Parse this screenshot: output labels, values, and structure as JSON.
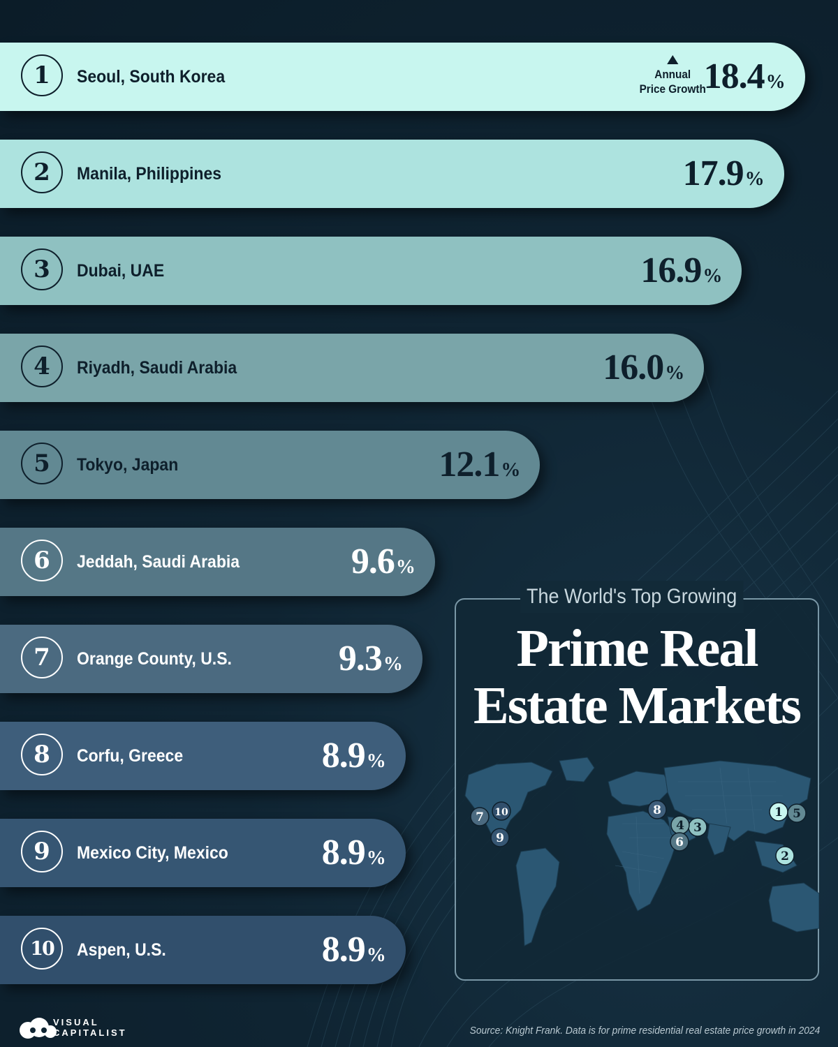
{
  "title": {
    "subtitle": "The World's Top Growing",
    "line1": "Prime Real",
    "line2": "Estate Markets"
  },
  "value_note": {
    "line1": "Annual",
    "line2": "Price Growth"
  },
  "chart_data": {
    "type": "bar",
    "orientation": "horizontal",
    "title": "The World's Top Growing Prime Real Estate Markets",
    "value_label": "Annual Price Growth",
    "unit": "%",
    "categories": [
      "Seoul, South Korea",
      "Manila, Philippines",
      "Dubai, UAE",
      "Riyadh, Saudi Arabia",
      "Tokyo, Japan",
      "Jeddah, Saudi Arabia",
      "Orange County, U.S.",
      "Corfu, Greece",
      "Mexico City, Mexico",
      "Aspen, U.S."
    ],
    "values": [
      18.4,
      17.9,
      16.9,
      16.0,
      12.1,
      9.6,
      9.3,
      8.9,
      8.9,
      8.9
    ],
    "labels": [
      "18.4",
      "17.9",
      "16.9",
      "16.0",
      "12.1",
      "9.6",
      "9.3",
      "8.9",
      "8.9",
      "8.9"
    ],
    "ranks": [
      "1",
      "2",
      "3",
      "4",
      "5",
      "6",
      "7",
      "8",
      "9",
      "10"
    ],
    "bar_colors": [
      "#c8f6ef",
      "#ade3df",
      "#8fc1c1",
      "#7aa5a9",
      "#628993",
      "#557786",
      "#4b6a80",
      "#3e5e7b",
      "#365673",
      "#314f6c"
    ],
    "grid": false,
    "legend": "none"
  },
  "map": {
    "markers": [
      "1",
      "2",
      "3",
      "4",
      "5",
      "6",
      "7",
      "8",
      "9",
      "10"
    ],
    "marker_colors": {
      "1": "#c8f6ef",
      "2": "#ade3df",
      "3": "#8fc1c1",
      "4": "#7aa5a9",
      "5": "#628993",
      "6": "#557786",
      "7": "#4b6a80",
      "8": "#3e5e7b",
      "9": "#365673",
      "10": "#314f6c"
    }
  },
  "brand": {
    "line1": "VISUAL",
    "line2": "CAPITALIST"
  },
  "source": "Source: Knight Frank. Data is for prime residential real estate price growth in 2024"
}
